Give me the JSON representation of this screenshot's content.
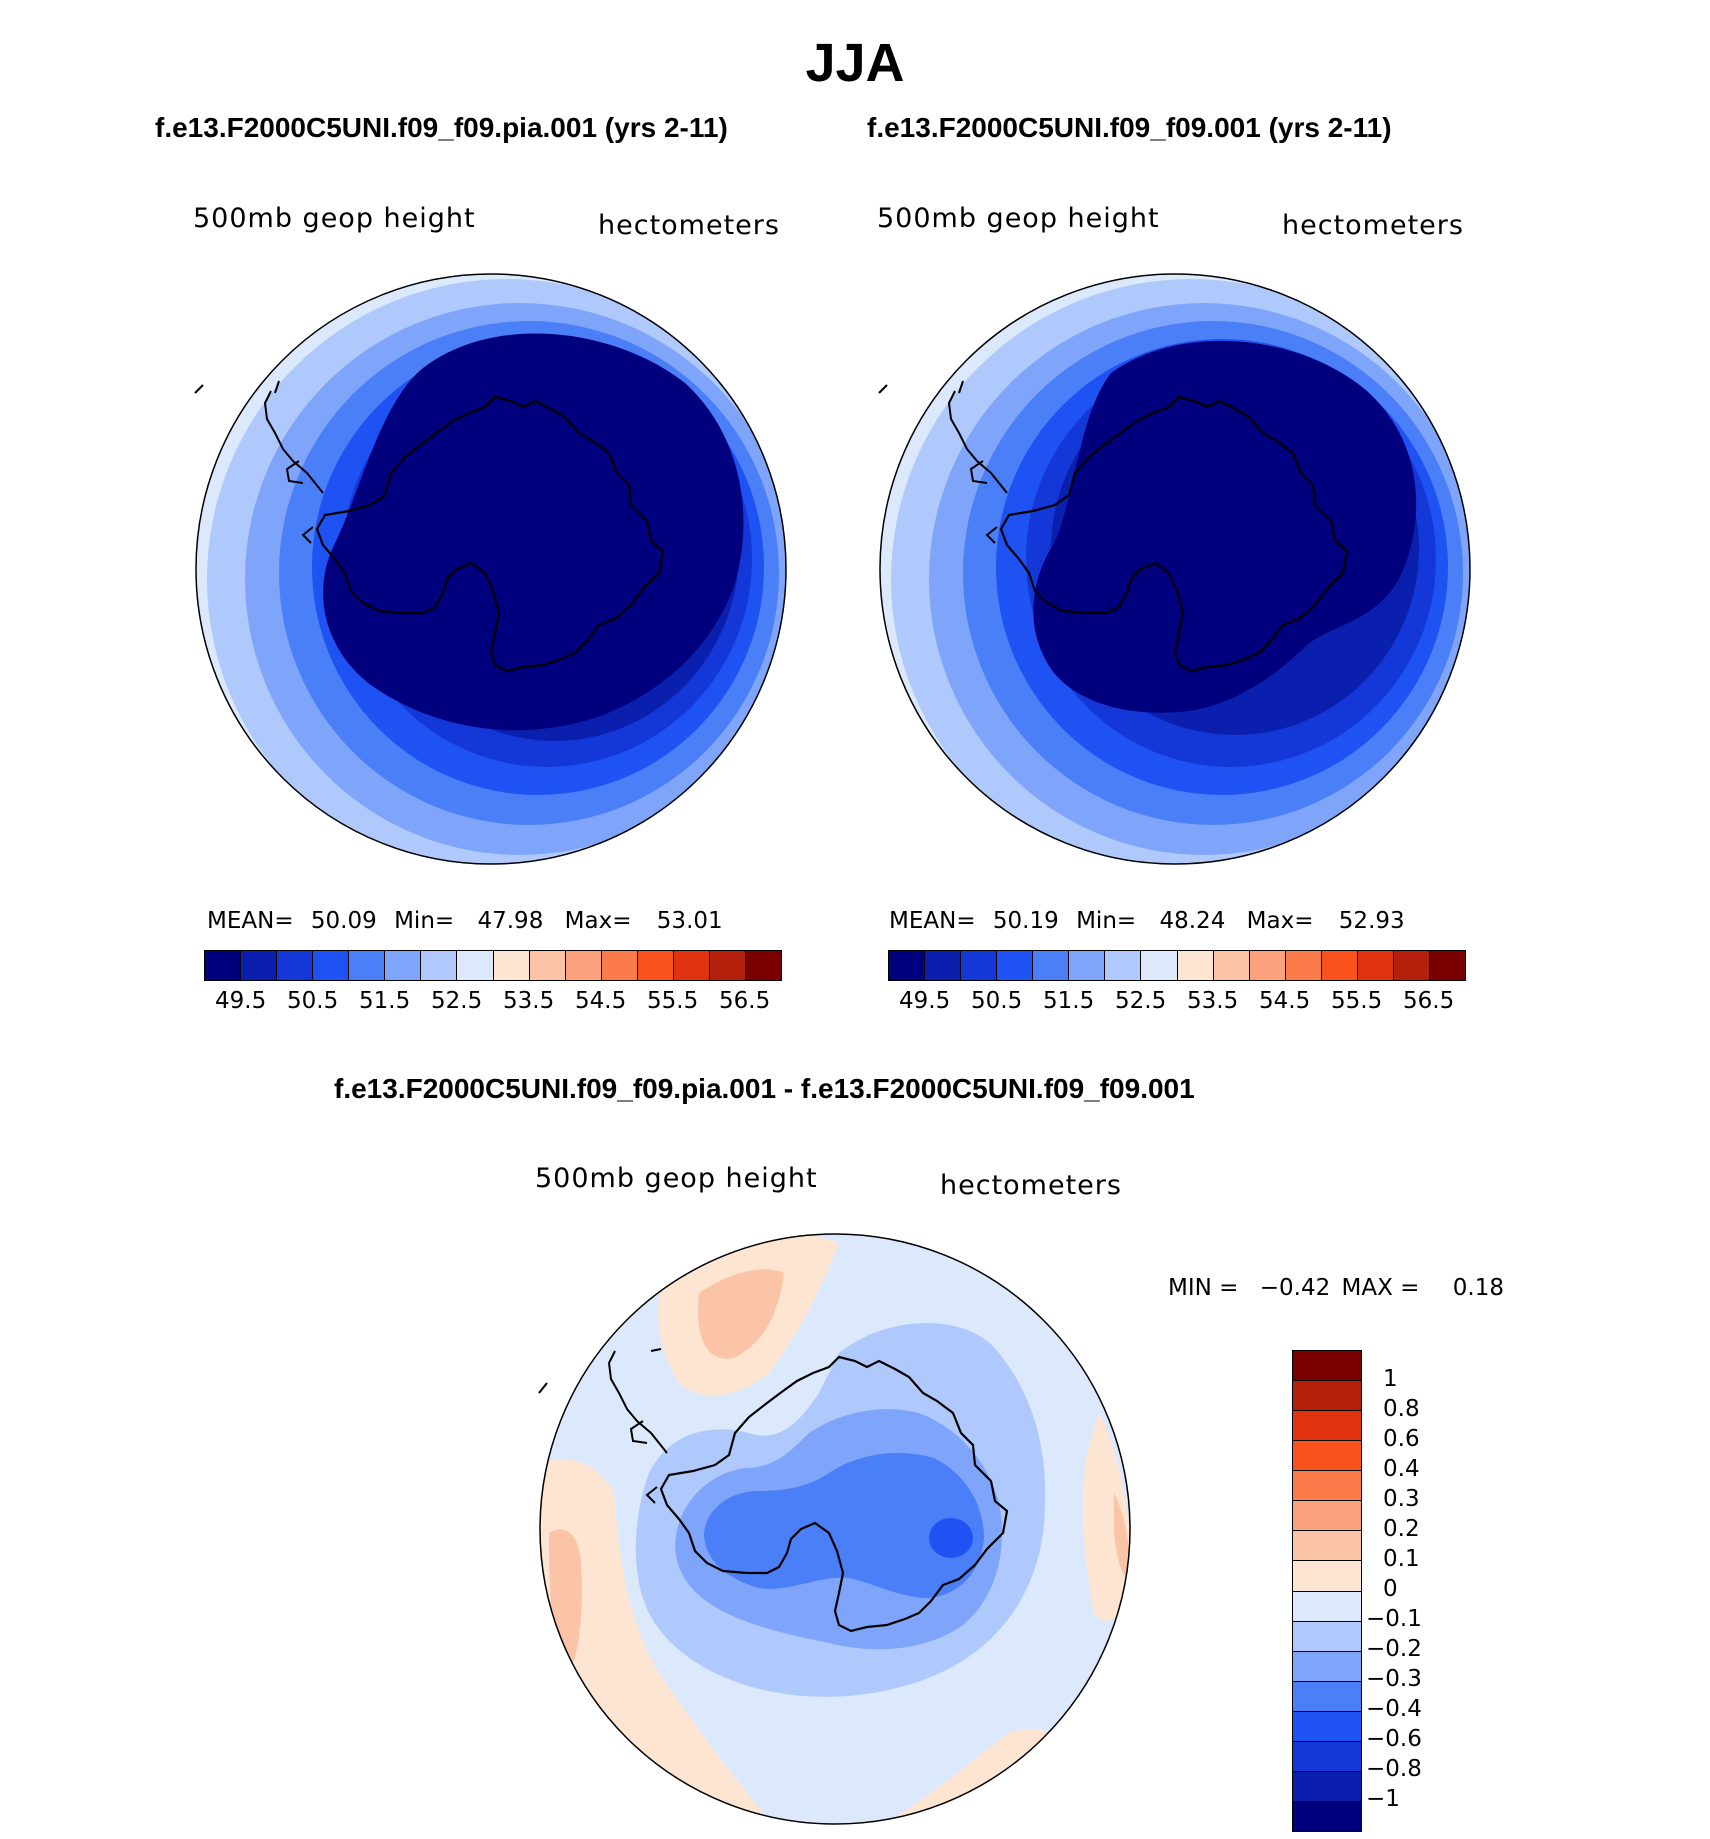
{
  "title": "JJA",
  "panels": [
    {
      "case": "f.e13.F2000C5UNI.f09_f09.pia.001 (yrs 2-11)",
      "variable": "500mb geop height",
      "units": "hectometers",
      "stats": {
        "mean_label": "MEAN=",
        "mean": "50.09",
        "min_label": "Min=",
        "min": "47.98",
        "max_label": "Max=",
        "max": "53.01"
      }
    },
    {
      "case": "f.e13.F2000C5UNI.f09_f09.001 (yrs 2-11)",
      "variable": "500mb geop height",
      "units": "hectometers",
      "stats": {
        "mean_label": "MEAN=",
        "mean": "50.19",
        "min_label": "Min=",
        "min": "48.24",
        "max_label": "Max=",
        "max": "52.93"
      }
    }
  ],
  "abs_colorbar": {
    "colors": [
      "#00007f",
      "#0a1fae",
      "#1438d8",
      "#1f52f2",
      "#4a7ff7",
      "#7fa5fb",
      "#b0c9fc",
      "#dce9fd",
      "#fde5d1",
      "#fcc4a6",
      "#fba17b",
      "#fb7b4b",
      "#f9521f",
      "#e0320f",
      "#b5200c",
      "#7a0000"
    ],
    "ticks": [
      "49.5",
      "50.5",
      "51.5",
      "52.5",
      "53.5",
      "54.5",
      "55.5",
      "56.5"
    ]
  },
  "difference": {
    "title": "f.e13.F2000C5UNI.f09_f09.pia.001 - f.e13.F2000C5UNI.f09_f09.001",
    "variable": "500mb geop height",
    "units": "hectometers",
    "min_label": "MIN =",
    "min": "−0.42",
    "max_label": "MAX =",
    "max": "0.18",
    "colorbar": {
      "colors_top_to_bottom": [
        "#7a0000",
        "#b5200c",
        "#e0320f",
        "#f9521f",
        "#fb7b4b",
        "#fba17b",
        "#fcc4a6",
        "#fde5d1",
        "#dce9fd",
        "#b0c9fc",
        "#7fa5fb",
        "#4a7ff7",
        "#1f52f2",
        "#1438d8",
        "#0a1fae",
        "#00007f"
      ],
      "ticks": [
        "1",
        "0.8",
        "0.6",
        "0.4",
        "0.3",
        "0.2",
        "0.1",
        "0",
        "−0.1",
        "−0.2",
        "−0.3",
        "−0.4",
        "−0.6",
        "−0.8",
        "−1"
      ]
    }
  }
}
